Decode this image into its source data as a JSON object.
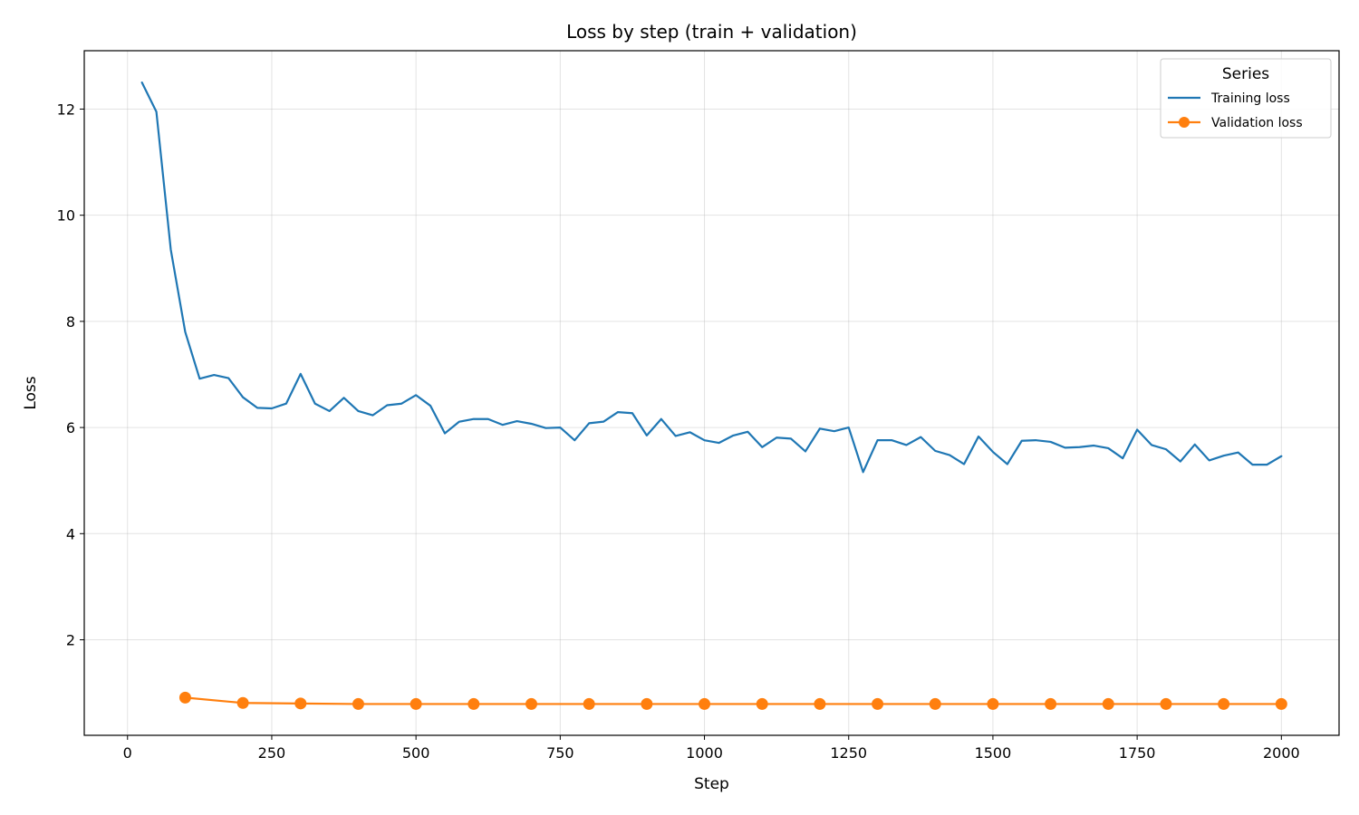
{
  "chart_data": {
    "type": "line",
    "title": "Loss by step (train + validation)",
    "xlabel": "Step",
    "ylabel": "Loss",
    "xlim": [
      -75,
      2100
    ],
    "ylim": [
      0.2,
      13.1
    ],
    "xticks": [
      0,
      250,
      500,
      750,
      1000,
      1250,
      1500,
      1750,
      2000
    ],
    "yticks": [
      2,
      4,
      6,
      8,
      10,
      12
    ],
    "grid": true,
    "legend": {
      "title": "Series",
      "placement": "top-right",
      "entries": [
        "Training loss",
        "Validation loss"
      ]
    },
    "series": [
      {
        "name": "Training loss",
        "color": "#1f77b4",
        "marker": "none",
        "x": [
          25,
          50,
          75,
          100,
          125,
          150,
          175,
          200,
          225,
          250,
          275,
          300,
          325,
          350,
          375,
          400,
          425,
          450,
          475,
          500,
          525,
          550,
          575,
          600,
          625,
          650,
          675,
          700,
          725,
          750,
          775,
          800,
          825,
          850,
          875,
          900,
          925,
          950,
          975,
          1000,
          1025,
          1050,
          1075,
          1100,
          1125,
          1150,
          1175,
          1200,
          1225,
          1250,
          1275,
          1300,
          1325,
          1350,
          1375,
          1400,
          1425,
          1450,
          1475,
          1500,
          1525,
          1550,
          1575,
          1600,
          1625,
          1650,
          1675,
          1700,
          1725,
          1750,
          1775,
          1800,
          1825,
          1850,
          1875,
          1900,
          1925,
          1950,
          1975,
          2000
        ],
        "y": [
          12.5,
          11.95,
          9.35,
          7.8,
          6.92,
          6.99,
          6.93,
          6.57,
          6.37,
          6.36,
          6.45,
          7.01,
          6.45,
          6.31,
          6.56,
          6.31,
          6.23,
          6.42,
          6.45,
          6.61,
          6.41,
          5.89,
          6.11,
          6.16,
          6.16,
          6.05,
          6.12,
          6.07,
          5.99,
          6.0,
          5.76,
          6.08,
          6.11,
          6.29,
          6.27,
          5.85,
          6.16,
          5.84,
          5.91,
          5.76,
          5.71,
          5.85,
          5.92,
          5.63,
          5.81,
          5.79,
          5.55,
          5.98,
          5.93,
          6.0,
          5.16,
          5.76,
          5.76,
          5.67,
          5.82,
          5.56,
          5.48,
          5.31,
          5.83,
          5.54,
          5.31,
          5.75,
          5.76,
          5.73,
          5.62,
          5.63,
          5.66,
          5.61,
          5.42,
          5.96,
          5.67,
          5.59,
          5.36,
          5.68,
          5.38,
          5.47,
          5.53,
          5.3,
          5.3,
          5.46
        ]
      },
      {
        "name": "Validation loss",
        "color": "#ff7f0e",
        "marker": "circle",
        "x": [
          100,
          200,
          300,
          400,
          500,
          600,
          700,
          800,
          900,
          1000,
          1100,
          1200,
          1300,
          1400,
          1500,
          1600,
          1700,
          1800,
          1900,
          2000
        ],
        "y": [
          0.91,
          0.81,
          0.8,
          0.79,
          0.79,
          0.79,
          0.79,
          0.79,
          0.79,
          0.79,
          0.79,
          0.79,
          0.79,
          0.79,
          0.79,
          0.79,
          0.79,
          0.79,
          0.79,
          0.79
        ]
      }
    ]
  }
}
